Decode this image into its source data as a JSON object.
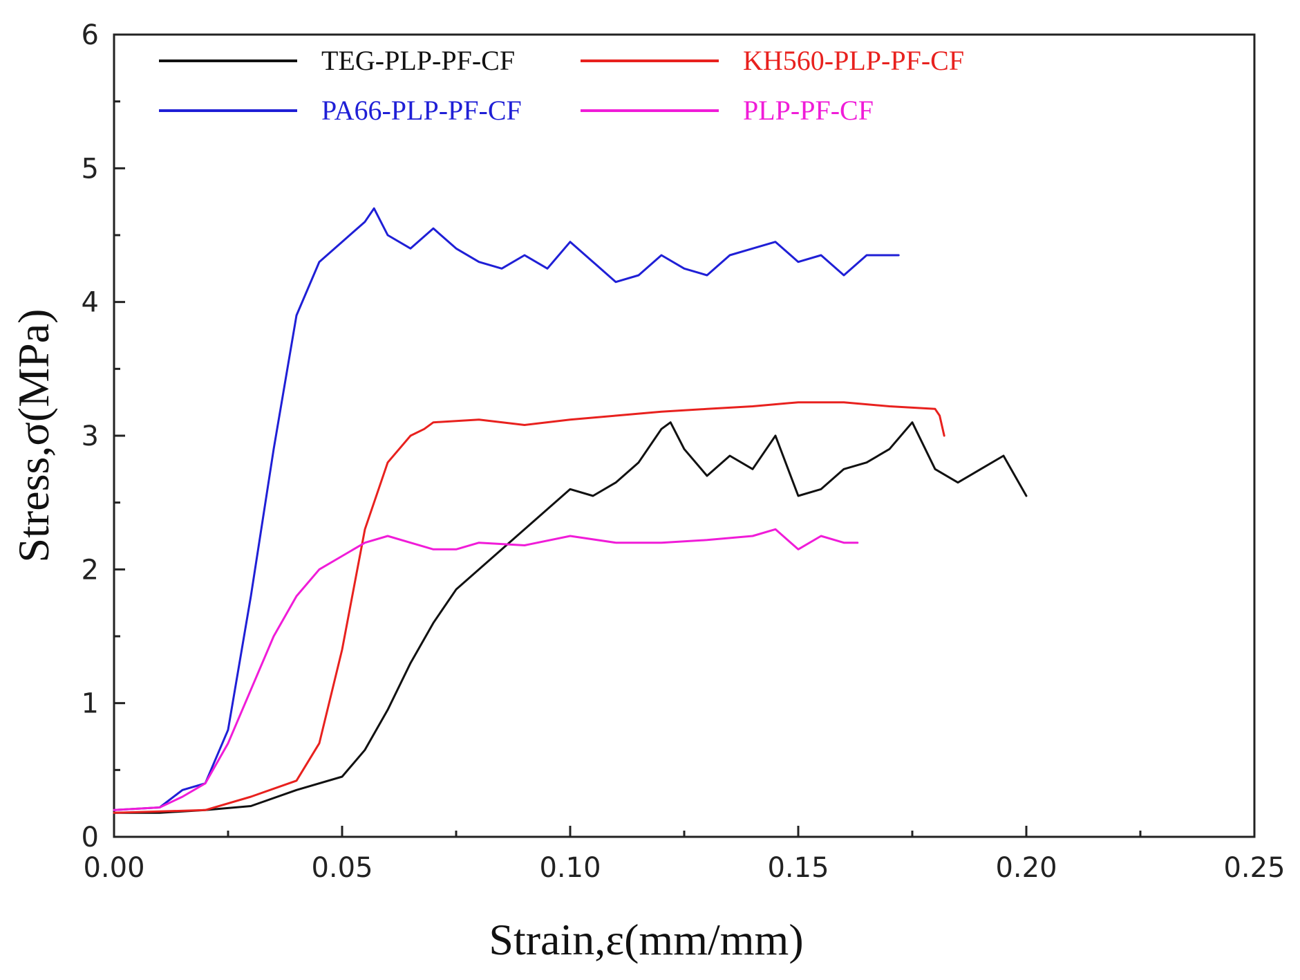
{
  "chart_data": {
    "type": "line",
    "title": "",
    "xlabel": "Strain,ε(mm/mm)",
    "ylabel": "Stress,σ(MPa)",
    "xlim": [
      0,
      0.25
    ],
    "ylim": [
      0,
      6
    ],
    "xticks": [
      0,
      0.05,
      0.1,
      0.15,
      0.2,
      0.25
    ],
    "xtick_labels": [
      "0.00",
      "0.05",
      "0.10",
      "0.15",
      "0.20",
      "0.25"
    ],
    "yticks": [
      0,
      1,
      2,
      3,
      4,
      5,
      6
    ],
    "ytick_labels": [
      "0",
      "1",
      "2",
      "3",
      "4",
      "5",
      "6"
    ],
    "grid": false,
    "legend_position": "top",
    "series": [
      {
        "name": "TEG-PLP-PF-CF",
        "color": "#111111",
        "x": [
          0,
          0.01,
          0.02,
          0.03,
          0.04,
          0.05,
          0.055,
          0.06,
          0.065,
          0.07,
          0.075,
          0.08,
          0.085,
          0.09,
          0.095,
          0.1,
          0.105,
          0.11,
          0.115,
          0.12,
          0.122,
          0.125,
          0.13,
          0.135,
          0.14,
          0.145,
          0.15,
          0.155,
          0.16,
          0.165,
          0.17,
          0.175,
          0.18,
          0.185,
          0.19,
          0.195,
          0.2
        ],
        "values": [
          0.18,
          0.18,
          0.2,
          0.23,
          0.35,
          0.45,
          0.65,
          0.95,
          1.3,
          1.6,
          1.85,
          2.0,
          2.15,
          2.3,
          2.45,
          2.6,
          2.55,
          2.65,
          2.8,
          3.05,
          3.1,
          2.9,
          2.7,
          2.85,
          2.75,
          3.0,
          2.55,
          2.6,
          2.75,
          2.8,
          2.9,
          3.1,
          2.75,
          2.65,
          2.75,
          2.85,
          2.55
        ]
      },
      {
        "name": "KH560-PLP-PF-CF",
        "color": "#e8211e",
        "x": [
          0,
          0.02,
          0.03,
          0.04,
          0.045,
          0.05,
          0.055,
          0.06,
          0.065,
          0.068,
          0.07,
          0.08,
          0.09,
          0.1,
          0.11,
          0.12,
          0.13,
          0.14,
          0.15,
          0.16,
          0.17,
          0.18,
          0.181,
          0.182
        ],
        "values": [
          0.18,
          0.2,
          0.3,
          0.42,
          0.7,
          1.4,
          2.3,
          2.8,
          3.0,
          3.05,
          3.1,
          3.12,
          3.08,
          3.12,
          3.15,
          3.18,
          3.2,
          3.22,
          3.25,
          3.25,
          3.22,
          3.2,
          3.15,
          3.0
        ]
      },
      {
        "name": "PA66-PLP-PF-CF",
        "color": "#1f1fd6",
        "x": [
          0,
          0.01,
          0.015,
          0.02,
          0.025,
          0.03,
          0.035,
          0.04,
          0.045,
          0.05,
          0.055,
          0.057,
          0.06,
          0.065,
          0.07,
          0.075,
          0.08,
          0.085,
          0.09,
          0.095,
          0.1,
          0.105,
          0.11,
          0.115,
          0.12,
          0.125,
          0.13,
          0.135,
          0.14,
          0.145,
          0.15,
          0.155,
          0.16,
          0.165,
          0.17,
          0.172
        ],
        "values": [
          0.2,
          0.22,
          0.35,
          0.4,
          0.8,
          1.8,
          2.9,
          3.9,
          4.3,
          4.45,
          4.6,
          4.7,
          4.5,
          4.4,
          4.55,
          4.4,
          4.3,
          4.25,
          4.35,
          4.25,
          4.45,
          4.3,
          4.15,
          4.2,
          4.35,
          4.25,
          4.2,
          4.35,
          4.4,
          4.45,
          4.3,
          4.35,
          4.2,
          4.35,
          4.35,
          4.35
        ]
      },
      {
        "name": "PLP-PF-CF",
        "color": "#f01cd8",
        "x": [
          0,
          0.01,
          0.015,
          0.02,
          0.025,
          0.03,
          0.035,
          0.04,
          0.045,
          0.05,
          0.055,
          0.06,
          0.065,
          0.07,
          0.075,
          0.08,
          0.09,
          0.1,
          0.11,
          0.12,
          0.13,
          0.14,
          0.145,
          0.15,
          0.155,
          0.16,
          0.163
        ],
        "values": [
          0.2,
          0.22,
          0.3,
          0.4,
          0.7,
          1.1,
          1.5,
          1.8,
          2.0,
          2.1,
          2.2,
          2.25,
          2.2,
          2.15,
          2.15,
          2.2,
          2.18,
          2.25,
          2.2,
          2.2,
          2.22,
          2.25,
          2.3,
          2.15,
          2.25,
          2.2,
          2.2
        ]
      }
    ]
  }
}
